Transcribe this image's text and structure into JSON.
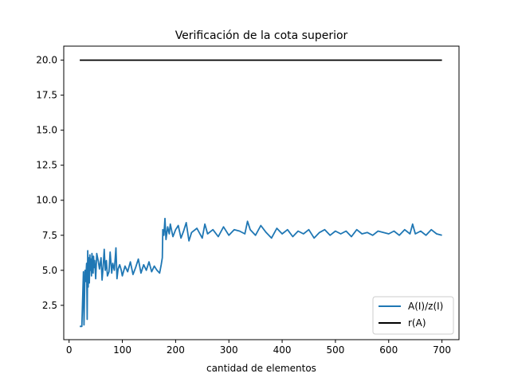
{
  "chart_data": {
    "type": "line",
    "title": "Verificación de la cota superior",
    "xlabel": "cantidad de elementos",
    "ylabel": "",
    "xlim": [
      -10,
      732
    ],
    "ylim": [
      0.05,
      21.0
    ],
    "xticks": [
      0,
      100,
      200,
      300,
      400,
      500,
      600,
      700
    ],
    "yticks": [
      2.5,
      5.0,
      7.5,
      10.0,
      12.5,
      15.0,
      17.5,
      20.0
    ],
    "xtick_labels": [
      "0",
      "100",
      "200",
      "300",
      "400",
      "500",
      "600",
      "700"
    ],
    "ytick_labels": [
      "2.5",
      "5.0",
      "7.5",
      "10.0",
      "12.5",
      "15.0",
      "17.5",
      "20.0"
    ],
    "grid": false,
    "legend_position": "lower-right",
    "series": [
      {
        "name": "A(I)/z(I)",
        "color": "#1f77b4",
        "x": [
          20,
          24,
          27,
          28,
          30,
          31,
          33,
          34,
          35,
          36,
          37,
          38,
          39,
          40,
          41,
          42,
          43,
          44,
          45,
          46,
          47,
          48,
          50,
          52,
          55,
          57,
          60,
          62,
          64,
          66,
          68,
          70,
          72,
          75,
          77,
          80,
          82,
          85,
          88,
          90,
          92,
          95,
          98,
          100,
          105,
          110,
          115,
          120,
          125,
          130,
          135,
          140,
          145,
          150,
          155,
          160,
          165,
          170,
          173,
          175,
          176,
          178,
          180,
          182,
          185,
          188,
          190,
          195,
          200,
          205,
          210,
          215,
          220,
          225,
          230,
          240,
          250,
          255,
          260,
          270,
          280,
          290,
          300,
          310,
          320,
          330,
          335,
          340,
          350,
          360,
          370,
          380,
          390,
          400,
          410,
          420,
          430,
          440,
          450,
          460,
          470,
          480,
          490,
          500,
          510,
          520,
          530,
          540,
          550,
          560,
          570,
          580,
          590,
          600,
          610,
          620,
          630,
          640,
          645,
          650,
          660,
          670,
          680,
          690,
          700
        ],
        "y": [
          1.0,
          1.0,
          4.9,
          1.1,
          5.0,
          4.2,
          5.5,
          1.5,
          6.4,
          3.8,
          5.9,
          4.1,
          6.1,
          5.0,
          5.8,
          4.6,
          6.2,
          5.5,
          4.8,
          6.0,
          5.2,
          5.7,
          4.4,
          6.2,
          5.6,
          5.1,
          5.9,
          4.3,
          5.3,
          6.5,
          5.0,
          5.7,
          4.6,
          4.9,
          6.3,
          4.8,
          5.5,
          5.0,
          6.6,
          4.4,
          5.1,
          5.4,
          5.0,
          4.6,
          5.3,
          4.9,
          5.6,
          4.7,
          5.2,
          5.8,
          4.8,
          5.4,
          5.0,
          5.6,
          4.9,
          5.3,
          5.0,
          4.8,
          5.4,
          5.9,
          7.9,
          7.5,
          8.7,
          7.2,
          8.1,
          7.6,
          8.3,
          7.4,
          7.9,
          8.2,
          7.3,
          7.8,
          8.4,
          7.1,
          7.7,
          8.0,
          7.3,
          8.3,
          7.6,
          7.9,
          7.4,
          8.1,
          7.5,
          7.9,
          7.8,
          7.6,
          8.5,
          7.9,
          7.5,
          8.2,
          7.7,
          7.3,
          8.0,
          7.6,
          7.9,
          7.4,
          7.8,
          7.6,
          7.9,
          7.3,
          7.7,
          7.9,
          7.5,
          7.8,
          7.6,
          7.8,
          7.4,
          7.9,
          7.6,
          7.7,
          7.5,
          7.8,
          7.7,
          7.6,
          7.8,
          7.5,
          7.9,
          7.6,
          8.3,
          7.6,
          7.8,
          7.5,
          7.9,
          7.6,
          7.5
        ]
      },
      {
        "name": "r(A)",
        "color": "#000000",
        "x": [
          20,
          700
        ],
        "y": [
          20.0,
          20.0
        ]
      }
    ]
  }
}
